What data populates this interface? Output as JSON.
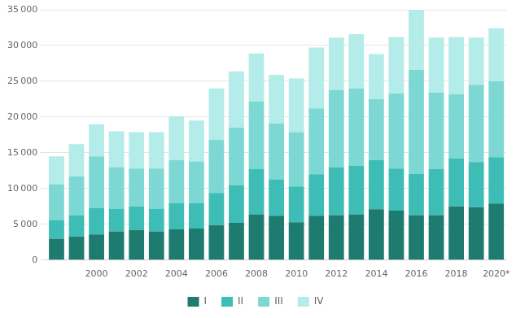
{
  "chart_data": {
    "type": "bar",
    "stacked": true,
    "categories": [
      null,
      null,
      "2000",
      null,
      "2002",
      null,
      "2004",
      null,
      "2006",
      null,
      "2008",
      null,
      "2010",
      null,
      "2012",
      null,
      "2014",
      null,
      "2016",
      null,
      "2018",
      null,
      "2020*"
    ],
    "series": [
      {
        "name": "I",
        "color": "#1e7b70",
        "values": [
          3000,
          3300,
          3600,
          4000,
          4200,
          4000,
          4300,
          4400,
          4900,
          5200,
          6400,
          6200,
          5300,
          6200,
          6300,
          6400,
          7100,
          6900,
          6300,
          6300,
          7500,
          7400,
          7900
        ]
      },
      {
        "name": "II",
        "color": "#3dbdb5",
        "values": [
          2600,
          3000,
          3700,
          3200,
          3300,
          3200,
          3700,
          3600,
          4500,
          5300,
          6300,
          5100,
          5000,
          5800,
          6700,
          6800,
          6900,
          5900,
          5800,
          6400,
          6700,
          6300,
          6500
        ]
      },
      {
        "name": "III",
        "color": "#7dd8d3",
        "values": [
          5000,
          5400,
          7200,
          5800,
          5300,
          5600,
          6000,
          5800,
          7400,
          8000,
          9500,
          7800,
          7600,
          9200,
          10800,
          10800,
          8500,
          10500,
          14500,
          10700,
          9000,
          10800,
          10600
        ]
      },
      {
        "name": "IV",
        "color": "#b3ece9",
        "values": [
          3900,
          4500,
          4500,
          5000,
          5100,
          5100,
          6100,
          5700,
          7200,
          7900,
          6700,
          6800,
          7500,
          8500,
          7300,
          7600,
          6300,
          7900,
          8400,
          7700,
          8000,
          6600,
          7400
        ]
      }
    ],
    "ylim": [
      0,
      35000
    ],
    "yticks": [
      0,
      {
        "value": 5000,
        "label": "5 000"
      },
      {
        "value": 10000,
        "label": "10 000"
      },
      {
        "value": 15000,
        "label": "15 000"
      },
      {
        "value": 20000,
        "label": "20 000"
      },
      {
        "value": 25000,
        "label": "25 000"
      },
      {
        "value": 30000,
        "label": "30 000"
      },
      {
        "value": 35000,
        "label": "35 000"
      }
    ],
    "grid": true,
    "legend": "bottom"
  }
}
